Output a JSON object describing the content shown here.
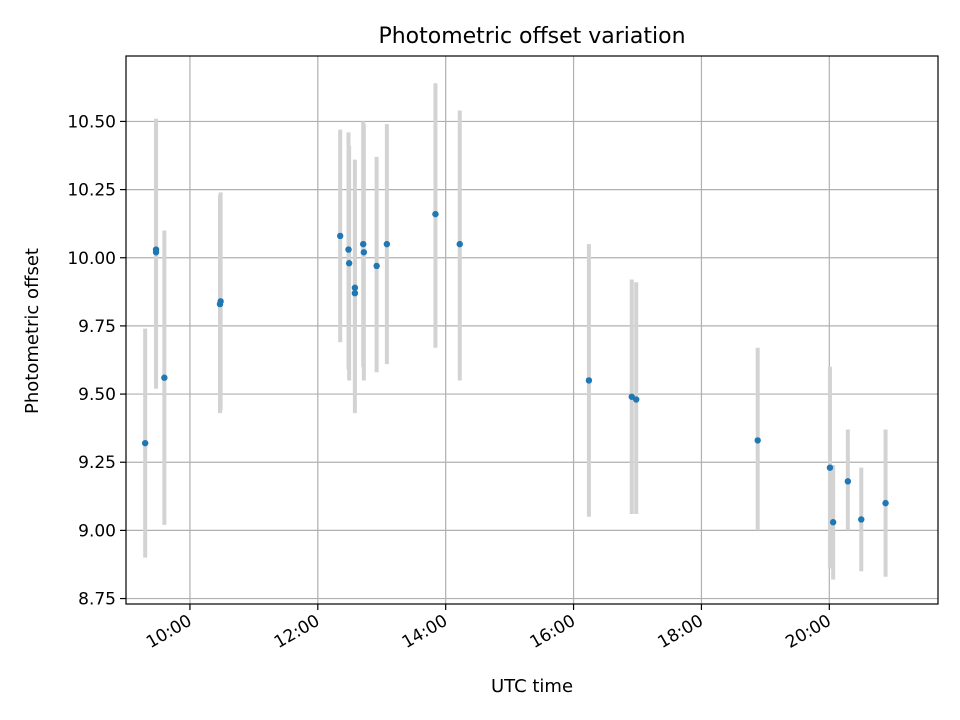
{
  "chart_data": {
    "type": "scatter",
    "title": "Photometric offset variation",
    "xlabel": "UTC time",
    "ylabel": "Photometric offset",
    "x_unit": "hours UTC",
    "xlim": [
      9.0,
      21.7
    ],
    "ylim": [
      8.73,
      10.74
    ],
    "x_ticks": [
      {
        "value": 10,
        "label": "10:00"
      },
      {
        "value": 12,
        "label": "12:00"
      },
      {
        "value": 14,
        "label": "14:00"
      },
      {
        "value": 16,
        "label": "16:00"
      },
      {
        "value": 18,
        "label": "18:00"
      },
      {
        "value": 20,
        "label": "20:00"
      }
    ],
    "y_ticks": [
      {
        "value": 8.75,
        "label": "8.75"
      },
      {
        "value": 9.0,
        "label": "9.00"
      },
      {
        "value": 9.25,
        "label": "9.25"
      },
      {
        "value": 9.5,
        "label": "9.50"
      },
      {
        "value": 9.75,
        "label": "9.75"
      },
      {
        "value": 10.0,
        "label": "10.00"
      },
      {
        "value": 10.25,
        "label": "10.25"
      },
      {
        "value": 10.5,
        "label": "10.50"
      }
    ],
    "grid": true,
    "marker_color": "#1f77b4",
    "errorbar_color": "#d3d3d3",
    "points": [
      {
        "x": 9.3,
        "y": 9.32,
        "ylow": 8.9,
        "yhigh": 9.74
      },
      {
        "x": 9.47,
        "y": 10.02,
        "ylow": 9.52,
        "yhigh": 10.51
      },
      {
        "x": 9.47,
        "y": 10.03,
        "ylow": 9.52,
        "yhigh": 10.5
      },
      {
        "x": 9.6,
        "y": 9.56,
        "ylow": 9.02,
        "yhigh": 10.1
      },
      {
        "x": 10.47,
        "y": 9.83,
        "ylow": 9.43,
        "yhigh": 10.23
      },
      {
        "x": 10.48,
        "y": 9.84,
        "ylow": 9.44,
        "yhigh": 10.24
      },
      {
        "x": 12.35,
        "y": 10.08,
        "ylow": 9.69,
        "yhigh": 10.47
      },
      {
        "x": 12.48,
        "y": 10.03,
        "ylow": 9.59,
        "yhigh": 10.46
      },
      {
        "x": 12.49,
        "y": 9.98,
        "ylow": 9.55,
        "yhigh": 10.41
      },
      {
        "x": 12.58,
        "y": 9.89,
        "ylow": 9.43,
        "yhigh": 10.36
      },
      {
        "x": 12.58,
        "y": 9.87,
        "ylow": 9.5,
        "yhigh": 10.24
      },
      {
        "x": 12.71,
        "y": 10.05,
        "ylow": 9.6,
        "yhigh": 10.5
      },
      {
        "x": 12.72,
        "y": 10.02,
        "ylow": 9.55,
        "yhigh": 10.49
      },
      {
        "x": 12.92,
        "y": 9.97,
        "ylow": 9.58,
        "yhigh": 10.37
      },
      {
        "x": 13.08,
        "y": 10.05,
        "ylow": 9.61,
        "yhigh": 10.49
      },
      {
        "x": 13.84,
        "y": 10.16,
        "ylow": 9.67,
        "yhigh": 10.64
      },
      {
        "x": 14.22,
        "y": 10.05,
        "ylow": 9.55,
        "yhigh": 10.54
      },
      {
        "x": 16.24,
        "y": 9.55,
        "ylow": 9.05,
        "yhigh": 10.05
      },
      {
        "x": 16.91,
        "y": 9.49,
        "ylow": 9.06,
        "yhigh": 9.92
      },
      {
        "x": 16.98,
        "y": 9.48,
        "ylow": 9.06,
        "yhigh": 9.91
      },
      {
        "x": 18.88,
        "y": 9.33,
        "ylow": 9.0,
        "yhigh": 9.67
      },
      {
        "x": 20.01,
        "y": 9.23,
        "ylow": 8.86,
        "yhigh": 9.6
      },
      {
        "x": 20.06,
        "y": 9.03,
        "ylow": 8.82,
        "yhigh": 9.24
      },
      {
        "x": 20.29,
        "y": 9.18,
        "ylow": 9.0,
        "yhigh": 9.37
      },
      {
        "x": 20.5,
        "y": 9.04,
        "ylow": 8.85,
        "yhigh": 9.23
      },
      {
        "x": 20.88,
        "y": 9.1,
        "ylow": 8.83,
        "yhigh": 9.37
      }
    ]
  }
}
